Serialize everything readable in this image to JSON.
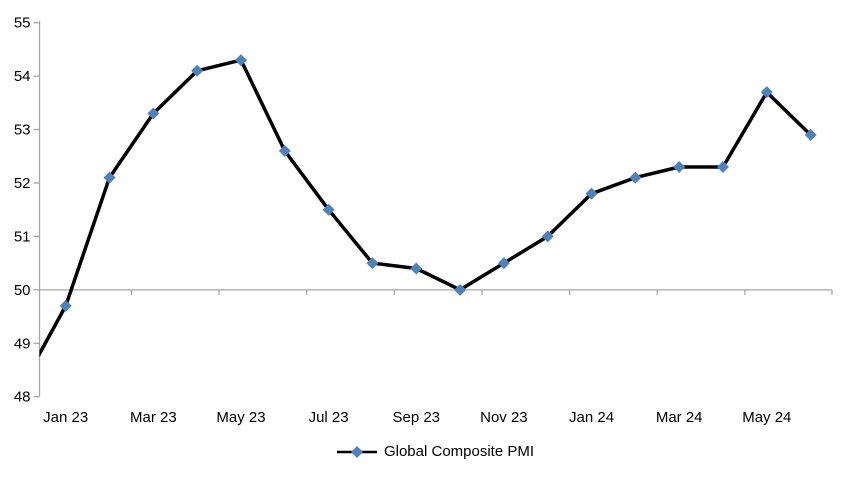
{
  "chart_data": {
    "type": "line",
    "title": "",
    "legend": {
      "label": "Global Composite PMI",
      "position": "bottom"
    },
    "categories": [
      "Jan 23",
      "Feb 23",
      "Mar 23",
      "Apr 23",
      "May 23",
      "Jun 23",
      "Jul 23",
      "Aug 23",
      "Sep 23",
      "Oct 23",
      "Nov 23",
      "Dec 23",
      "Jan 24",
      "Feb 24",
      "Mar 24",
      "Apr 24",
      "May 24",
      "Jun 24"
    ],
    "values": [
      49.7,
      52.1,
      53.3,
      54.1,
      54.3,
      52.6,
      51.5,
      50.5,
      50.4,
      50.0,
      50.5,
      51.0,
      51.8,
      52.1,
      52.3,
      52.3,
      53.7,
      52.9
    ],
    "partial_first_point": {
      "value": 48.2,
      "note": "line enters clipped at left plot edge near 48.9; no marker or label visible"
    },
    "x_axis_labels_shown": [
      "Jan 23",
      "Mar 23",
      "May 23",
      "Jul 23",
      "Sep 23",
      "Nov 23",
      "Jan 24",
      "Mar 24",
      "May 24"
    ],
    "y_ticks": [
      48,
      49,
      50,
      51,
      52,
      53,
      54,
      55
    ],
    "ylim": [
      48,
      55
    ],
    "x_axis_cross_value": 50,
    "grid": "off",
    "marker_shape": "diamond",
    "colors": {
      "line": "#000000",
      "marker": "#4F81BD",
      "axis": "#A6A6A6",
      "text": "#000000",
      "background": "#FFFFFF"
    }
  }
}
